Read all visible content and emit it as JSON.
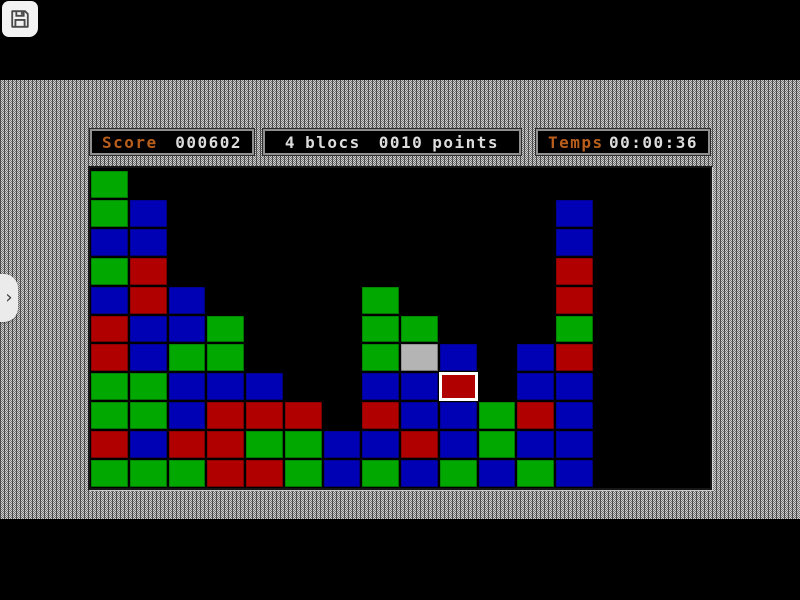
{
  "hud": {
    "score": {
      "label": "Score",
      "value": "000602"
    },
    "blocks": {
      "count": "4",
      "unit": "blocs",
      "points": "0010",
      "points_unit": "points"
    },
    "time": {
      "label": "Temps",
      "value": "00:00:36"
    }
  },
  "side_tab": {
    "chevron": "›"
  },
  "colors": {
    "green": "#00a800",
    "blue": "#0000b4",
    "red": "#b00000",
    "gray": "#b4b4b4",
    "selected_border": "#ffffff",
    "label_orange": "#ba5e1c",
    "value_white": "#dcdcdc",
    "board_bg": "#000000",
    "texture_light": "#d2d2d2",
    "texture_dark": "#727272"
  },
  "board": {
    "rows": 11,
    "cols": 16,
    "legend": {
      "G": "green",
      "B": "blue",
      "R": "red",
      "S": "gray",
      "X": "selected-red",
      ".": "empty"
    },
    "grid": [
      "G...............",
      "GB..........B...",
      "BB..........B...",
      "GR..........R...",
      "BRB....G....R...",
      "RBBG...GG...G...",
      "RBGG...GSB.BR...",
      "GGBBB..BBX.BB...",
      "GGBRRR.RBBGRB...",
      "RBRRGGBBRBGBB...",
      "GGGRRGBGBGBGB..."
    ]
  }
}
